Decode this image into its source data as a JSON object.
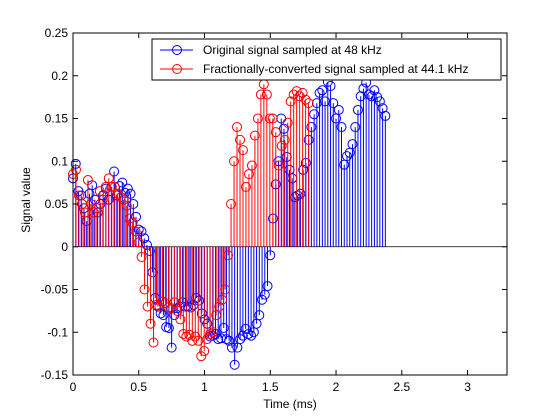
{
  "chart_data": {
    "type": "stem",
    "xlabel": "Time (ms)",
    "ylabel": "Signal value",
    "xlim": [
      0,
      3.3
    ],
    "ylim": [
      -0.15,
      0.25
    ],
    "x_ticks": [
      0,
      0.5,
      1,
      1.5,
      2,
      2.5,
      3
    ],
    "x_tick_labels": [
      "0",
      "0.5",
      "1",
      "1.5",
      "2",
      "2.5",
      "3"
    ],
    "y_ticks": [
      -0.15,
      -0.1,
      -0.05,
      0,
      0.05,
      0.1,
      0.15,
      0.2,
      0.25
    ],
    "y_tick_labels": [
      "-0.15",
      "-0.1",
      "-0.05",
      "0",
      "0.05",
      "0.1",
      "0.15",
      "0.2",
      "0.25"
    ],
    "grid": false,
    "legend_position": "top-right",
    "series": [
      {
        "name": "Original signal sampled at 48 kHz",
        "color": "#0000ff",
        "sample_rate_khz": 48,
        "values": [
          0.08,
          0.097,
          0.065,
          0.06,
          0.045,
          0.03,
          0.062,
          0.072,
          0.055,
          0.04,
          0.05,
          0.06,
          0.068,
          0.055,
          0.07,
          0.088,
          0.06,
          0.071,
          0.075,
          0.063,
          0.068,
          0.062,
          0.05,
          0.035,
          0.02,
          0.018,
          0.01,
          0.002,
          -0.005,
          -0.03,
          -0.06,
          -0.07,
          -0.078,
          -0.08,
          -0.094,
          -0.095,
          -0.118,
          -0.08,
          -0.072,
          -0.07,
          -0.065,
          -0.07,
          -0.07,
          -0.071,
          -0.068,
          -0.06,
          -0.063,
          -0.078,
          -0.085,
          -0.09,
          -0.105,
          -0.104,
          -0.102,
          -0.108,
          -0.107,
          -0.095,
          -0.108,
          -0.11,
          -0.118,
          -0.138,
          -0.118,
          -0.108,
          -0.104,
          -0.096,
          -0.102,
          -0.104,
          -0.1,
          -0.09,
          -0.08,
          -0.062,
          -0.056,
          -0.046,
          -0.01,
          0.033,
          0.073,
          0.1,
          0.15,
          0.138,
          0.105,
          0.09,
          0.08,
          0.058,
          0.06,
          0.062,
          0.09,
          0.098,
          0.125,
          0.14,
          0.155,
          0.168,
          0.18,
          0.183,
          0.17,
          0.193,
          0.188,
          0.168,
          0.15,
          0.16,
          0.14,
          0.096,
          0.106,
          0.11,
          0.12,
          0.14,
          0.16,
          0.176,
          0.185,
          0.192,
          0.178,
          0.176,
          0.183,
          0.175,
          0.17,
          0.162,
          0.153
        ]
      },
      {
        "name": "Fractionally-converted signal sampled at 44.1 kHz",
        "color": "#ff0000",
        "sample_rate_khz": 44.1,
        "values": [
          0.085,
          0.09,
          0.06,
          0.05,
          0.04,
          0.078,
          0.05,
          0.04,
          0.045,
          0.065,
          0.055,
          0.07,
          0.08,
          0.07,
          0.07,
          0.062,
          0.058,
          0.055,
          0.048,
          0.033,
          0.028,
          0.018,
          0.005,
          -0.012,
          -0.05,
          -0.07,
          -0.09,
          -0.112,
          -0.068,
          -0.07,
          -0.064,
          -0.066,
          -0.071,
          -0.072,
          -0.065,
          -0.075,
          -0.085,
          -0.102,
          -0.105,
          -0.103,
          -0.11,
          -0.105,
          -0.11,
          -0.128,
          -0.122,
          -0.108,
          -0.102,
          -0.1,
          -0.08,
          -0.07,
          -0.062,
          -0.05,
          -0.01,
          0.05,
          0.1,
          0.14,
          0.125,
          0.113,
          0.07,
          0.085,
          0.095,
          0.13,
          0.15,
          0.178,
          0.19,
          0.178,
          0.15,
          0.15,
          0.134,
          0.095,
          0.118,
          0.125,
          0.145,
          0.17,
          0.178,
          0.182,
          0.176,
          0.18,
          0.172,
          0.168
        ]
      }
    ]
  }
}
